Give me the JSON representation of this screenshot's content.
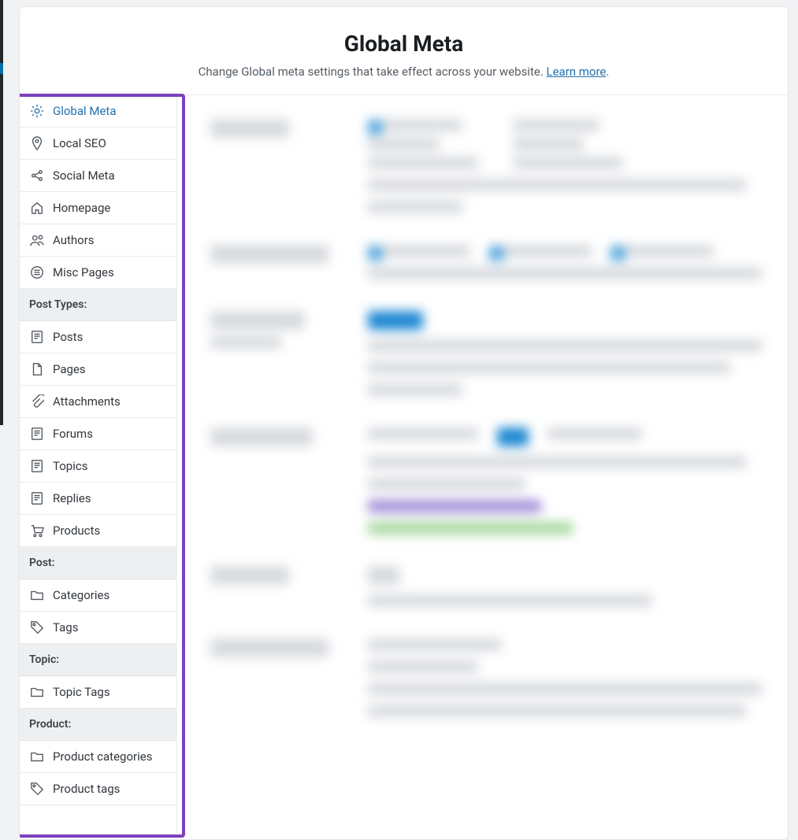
{
  "header": {
    "title": "Global Meta",
    "subtitle_pre": "Change Global meta settings that take effect across your website. ",
    "learn_more": "Learn more",
    "subtitle_post": "."
  },
  "sidebar": {
    "main": [
      {
        "icon": "gear",
        "label": "Global Meta",
        "active": true
      },
      {
        "icon": "pin",
        "label": "Local SEO"
      },
      {
        "icon": "share",
        "label": "Social Meta"
      },
      {
        "icon": "home",
        "label": "Homepage"
      },
      {
        "icon": "authors",
        "label": "Authors"
      },
      {
        "icon": "list",
        "label": "Misc Pages"
      }
    ],
    "sections": [
      {
        "title": "Post Types:",
        "items": [
          {
            "icon": "post",
            "label": "Posts"
          },
          {
            "icon": "page",
            "label": "Pages"
          },
          {
            "icon": "clip",
            "label": "Attachments"
          },
          {
            "icon": "post",
            "label": "Forums"
          },
          {
            "icon": "post",
            "label": "Topics"
          },
          {
            "icon": "post",
            "label": "Replies"
          },
          {
            "icon": "cart",
            "label": "Products"
          }
        ]
      },
      {
        "title": "Post:",
        "items": [
          {
            "icon": "folder",
            "label": "Categories"
          },
          {
            "icon": "tag",
            "label": "Tags"
          }
        ]
      },
      {
        "title": "Topic:",
        "items": [
          {
            "icon": "folder",
            "label": "Topic Tags"
          }
        ]
      },
      {
        "title": "Product:",
        "items": [
          {
            "icon": "folder",
            "label": "Product categories"
          },
          {
            "icon": "tag",
            "label": "Product tags"
          }
        ]
      }
    ]
  },
  "colors": {
    "accent": "#2271b1",
    "highlight_border": "#7b3fbf",
    "text": "#32373c",
    "muted": "#555d66",
    "border": "#e8eaed",
    "section_bg": "#edeff1"
  }
}
